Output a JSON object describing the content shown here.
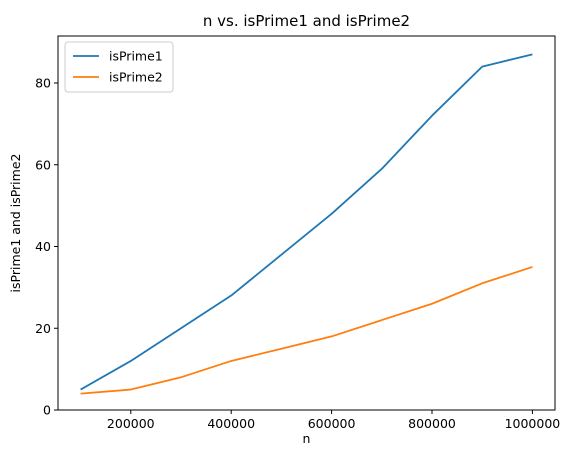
{
  "chart_data": {
    "type": "line",
    "title": "n vs. isPrime1 and isPrime2",
    "xlabel": "n",
    "ylabel": "isPrime1 and isPrime2",
    "x": [
      100000,
      200000,
      300000,
      400000,
      500000,
      600000,
      700000,
      800000,
      900000,
      1000000
    ],
    "xlim": [
      55000,
      1045000
    ],
    "ylim": [
      0,
      91.5
    ],
    "xticks": [
      200000,
      400000,
      600000,
      800000,
      1000000
    ],
    "xtick_labels": [
      "200000",
      "400000",
      "600000",
      "800000",
      "1000000"
    ],
    "yticks": [
      0,
      20,
      40,
      60,
      80
    ],
    "ytick_labels": [
      "0",
      "20",
      "40",
      "60",
      "80"
    ],
    "grid": false,
    "legend_position": "top-left",
    "series": [
      {
        "name": "isPrime1",
        "color": "#1f77b4",
        "values": [
          5,
          12,
          20,
          28,
          38,
          48,
          59,
          72,
          84,
          87
        ]
      },
      {
        "name": "isPrime2",
        "color": "#ff7f0e",
        "values": [
          4,
          5,
          8,
          12,
          15,
          18,
          22,
          26,
          31,
          35
        ]
      }
    ]
  }
}
